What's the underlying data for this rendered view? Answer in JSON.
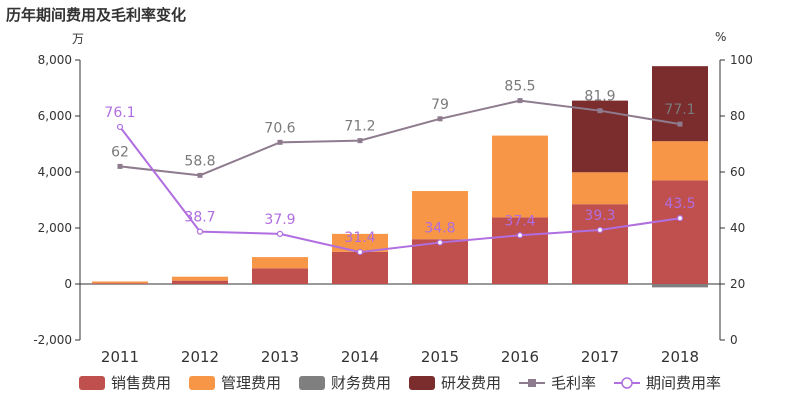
{
  "title": "历年期间费用及毛利率变化",
  "unit_left": "万",
  "unit_right": "%",
  "colors": {
    "sales": "#c0504d",
    "admin": "#f79646",
    "finance": "#7f7f7f",
    "rnd": "#7b2c2c",
    "gross": "#8e7b8e",
    "period": "#b06ee0"
  },
  "chart_data": {
    "type": "bar",
    "categories": [
      "2011",
      "2012",
      "2013",
      "2014",
      "2015",
      "2016",
      "2017",
      "2018"
    ],
    "ylim_left": [
      -2000,
      8000
    ],
    "ylim_right": [
      0,
      100
    ],
    "yticks_left": [
      "-2,000",
      "0",
      "2,000",
      "4,000",
      "6,000",
      "8,000"
    ],
    "yticks_right": [
      "0",
      "20",
      "40",
      "60",
      "80",
      "100"
    ],
    "grid": false,
    "legend_position": "bottom",
    "series": [
      {
        "name": "销售费用",
        "type": "bar",
        "values": [
          30,
          120,
          560,
          1150,
          1600,
          2380,
          2850,
          3700
        ]
      },
      {
        "name": "管理费用",
        "type": "bar",
        "values": [
          60,
          140,
          400,
          640,
          1720,
          2920,
          1140,
          1400
        ]
      },
      {
        "name": "财务费用",
        "type": "bar",
        "values": [
          0,
          0,
          0,
          0,
          0,
          0,
          0,
          -120
        ]
      },
      {
        "name": "研发费用",
        "type": "bar",
        "values": [
          0,
          0,
          0,
          0,
          0,
          0,
          2560,
          2680
        ]
      },
      {
        "name": "毛利率",
        "type": "line",
        "values": [
          62,
          58.8,
          70.6,
          71.2,
          79,
          85.5,
          81.9,
          77.1
        ]
      },
      {
        "name": "期间费用率",
        "type": "line",
        "values": [
          76.1,
          38.7,
          37.9,
          31.4,
          34.8,
          37.4,
          39.3,
          43.5
        ]
      }
    ],
    "gross_labels": [
      "62",
      "58.8",
      "70.6",
      "71.2",
      "79",
      "85.5",
      "81.9",
      "77.1"
    ],
    "period_labels": [
      "76.1",
      "38.7",
      "37.9",
      "31.4",
      "34.8",
      "37.4",
      "39.3",
      "43.5"
    ]
  }
}
